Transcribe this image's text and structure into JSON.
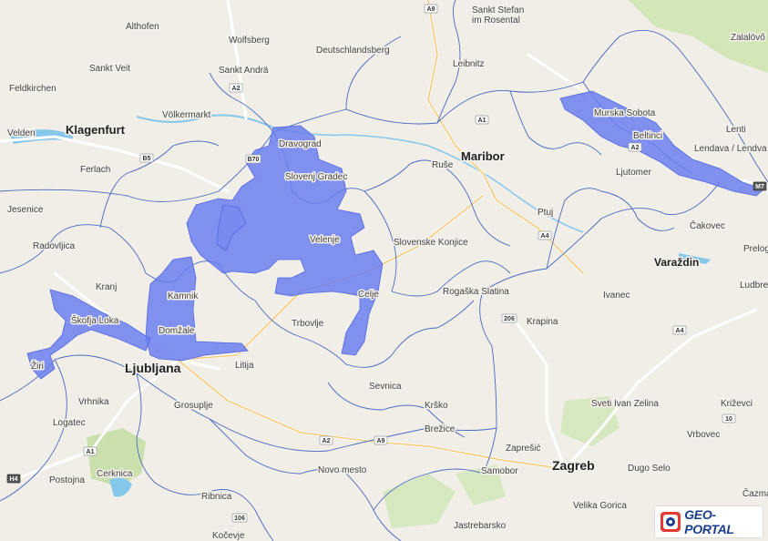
{
  "logo": {
    "text": "GEO-PORTAL",
    "icon": "geo-portal-logo-icon"
  },
  "colors": {
    "land": "#f1eee8",
    "boundary": "#3f62b5",
    "highlight": "#6b7ff0",
    "water": "#86c8ec",
    "forest": "#cfe3b5",
    "road": "#ffffff"
  },
  "places": {
    "major": [
      "Ljubljana",
      "Zagreb",
      "Klagenfurt",
      "Maribor"
    ],
    "mid": [
      "Varaždin"
    ],
    "minor": [
      "Althofen",
      "Wolfsberg",
      "Deutschlandsberg",
      "Sankt Stefan im Rosental",
      "Leibnitz",
      "Zalalövő",
      "Sankt Veit",
      "Sankt Andrä",
      "Feldkirchen",
      "Völkermarkt",
      "Velden",
      "Ferlach",
      "Dravograd",
      "Slovenj Gradec",
      "Ruše",
      "Murska Sobota",
      "Beltinci",
      "Lendava / Lendva",
      "Lenti",
      "Ljutomer",
      "Jesenice",
      "Radovljica",
      "Velenje",
      "Slovenske Konjice",
      "Ptuj",
      "Čakovec",
      "Prelog",
      "Kranj",
      "Kamnik",
      "Celje",
      "Rogaška Slatina",
      "Ivanec",
      "Ludbreg",
      "Škofja Loka",
      "Domžale",
      "Trbovlje",
      "Krapina",
      "Žiri",
      "Litija",
      "Sevnica",
      "Vrhnika",
      "Grosuplje",
      "Krško",
      "Sveti Ivan Zelina",
      "Križevci",
      "Logatec",
      "Brežice",
      "Vrbovec",
      "Cerknica",
      "Zaprešić",
      "Samobor",
      "Dugo Selo",
      "Postojna",
      "Novo mesto",
      "Ribnica",
      "Velika Gorica",
      "Jastrebarsko",
      "Kočevje",
      "Čazma"
    ]
  },
  "routes": [
    "A9",
    "A2",
    "B5",
    "B70",
    "A1",
    "A4",
    "A2",
    "206",
    "A4",
    "10",
    "A2",
    "A1",
    "H4",
    "106",
    "A9",
    "M7"
  ]
}
